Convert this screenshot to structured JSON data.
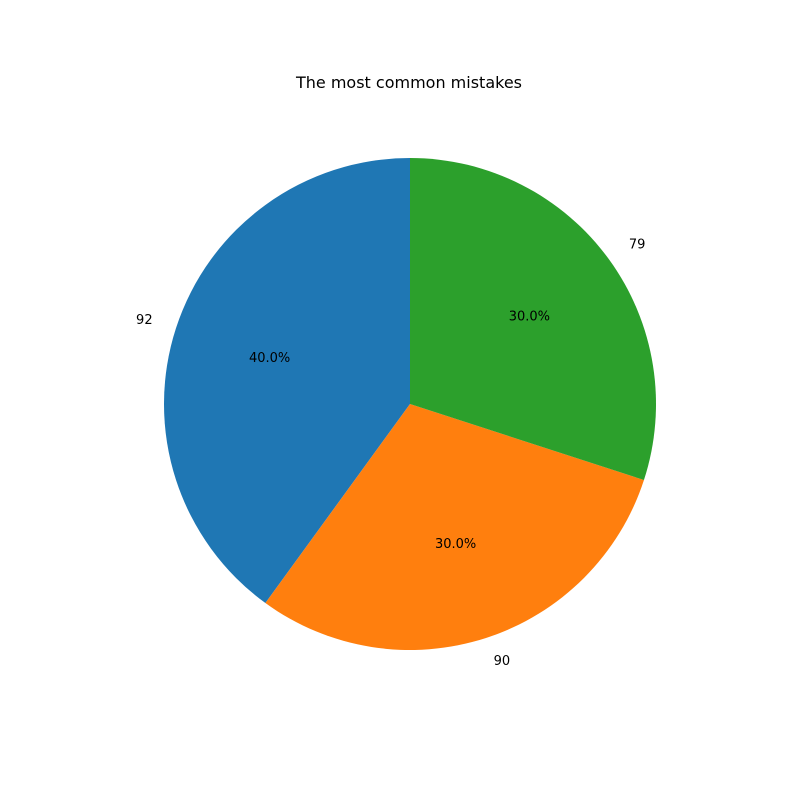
{
  "chart_data": {
    "type": "pie",
    "title": "The most common mistakes",
    "slices": [
      {
        "label": "92",
        "value": 40.0,
        "pct_label": "40.0%",
        "color": "#1f77b4"
      },
      {
        "label": "90",
        "value": 30.0,
        "pct_label": "30.0%",
        "color": "#ff7f0e"
      },
      {
        "label": "79",
        "value": 30.0,
        "pct_label": "30.0%",
        "color": "#2ca02c"
      }
    ],
    "start_angle_deg": 90,
    "direction": "counterclockwise",
    "legend": "none"
  }
}
